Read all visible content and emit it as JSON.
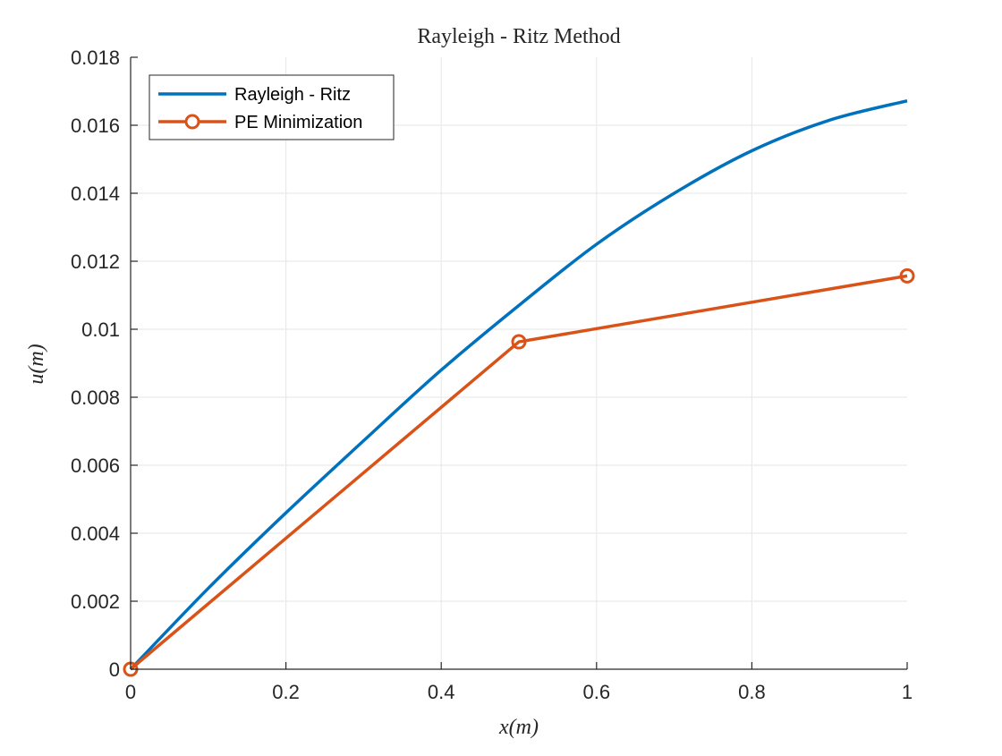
{
  "colors": {
    "series_1": "#0072BD",
    "series_2": "#D95319",
    "grid": "#e6e6e6",
    "axis": "#262626",
    "background": "#ffffff"
  },
  "chart_data": {
    "type": "line",
    "title": "Rayleigh - Ritz Method",
    "xlabel": "x(m)",
    "ylabel": "u(m)",
    "xlim": [
      0,
      1
    ],
    "ylim": [
      0,
      0.018
    ],
    "grid": true,
    "legend_placement": "top-left",
    "x_ticks": [
      "0",
      "0.2",
      "0.4",
      "0.6",
      "0.8",
      "1"
    ],
    "x_tick_values": [
      0,
      0.2,
      0.4,
      0.6,
      0.8,
      1
    ],
    "y_ticks": [
      "0",
      "0.002",
      "0.004",
      "0.006",
      "0.008",
      "0.01",
      "0.012",
      "0.014",
      "0.016",
      "0.018"
    ],
    "y_tick_values": [
      0,
      0.002,
      0.004,
      0.006,
      0.008,
      0.01,
      0.012,
      0.014,
      0.016,
      0.018
    ],
    "series": [
      {
        "name": "Rayleigh - Ritz",
        "marker": "none",
        "x": [
          0,
          0.1,
          0.2,
          0.3,
          0.4,
          0.5,
          0.6,
          0.7,
          0.8,
          0.9,
          1.0
        ],
        "y": [
          0,
          0.00238,
          0.0046,
          0.00672,
          0.0088,
          0.0107,
          0.0125,
          0.014,
          0.01525,
          0.01615,
          0.01672
        ]
      },
      {
        "name": "PE Minimization",
        "marker": "circle",
        "x": [
          0,
          0.5,
          1.0
        ],
        "y": [
          0,
          0.00963,
          0.01157
        ]
      }
    ]
  }
}
